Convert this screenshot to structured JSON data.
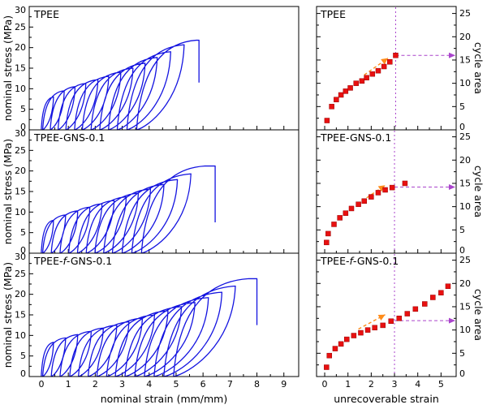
{
  "titles": {
    "left": [
      {
        "pre": "TPEE",
        "it": "",
        "post": ""
      },
      {
        "pre": "TPEE-GNS-0.1",
        "it": "",
        "post": ""
      },
      {
        "pre": "TPEE-",
        "it": "f",
        "post": "-GNS-0.1"
      }
    ],
    "right": [
      {
        "pre": "TPEE",
        "it": "",
        "post": ""
      },
      {
        "pre": "TPEE-GNS-0.1",
        "it": "",
        "post": ""
      },
      {
        "pre": "TPEE-",
        "it": "f",
        "post": "-GNS-0.1"
      }
    ]
  },
  "axes": {
    "left": {
      "ylabel": "nominal stress (MPa)",
      "xlabel": "nominal strain (mm/mm)",
      "y_ticks": [
        0,
        5,
        10,
        15,
        20,
        25,
        30
      ],
      "x_ticks": [
        0,
        1,
        2,
        3,
        4,
        5,
        6,
        7,
        8,
        9
      ],
      "ylim": [
        0,
        30
      ],
      "xlim": [
        0,
        9
      ]
    },
    "right": {
      "ylabel": "cycle area",
      "xlabel": "unrecoverable strain",
      "y_ticks": [
        0,
        5,
        10,
        15,
        20,
        25
      ],
      "x_ticks": [
        0,
        1,
        2,
        3,
        4,
        5
      ],
      "ylim": [
        0,
        25
      ],
      "xlim": [
        0,
        5
      ]
    }
  },
  "colors": {
    "curve": "#1414e0",
    "marker": "#e81010",
    "orange_arrow": "#ff8c1a",
    "purple_guide": "#aa44cc",
    "frame": "#000000"
  },
  "chart_data": [
    {
      "position": {
        "col": "left",
        "row": 0
      },
      "type": "line",
      "title": "TPEE",
      "xlabel": "nominal strain (mm/mm)",
      "ylabel": "nominal stress (MPa)",
      "xlim": [
        0,
        9
      ],
      "ylim": [
        0,
        30
      ],
      "series_desc": "cyclic loading-unloading hysteresis loops (nominal stress vs nominal strain)",
      "cycles_peak_strain_stress": [
        [
          0.45,
          8
        ],
        [
          0.85,
          9.5
        ],
        [
          1.25,
          10.5
        ],
        [
          1.65,
          11.3
        ],
        [
          2.1,
          12.2
        ],
        [
          2.5,
          13
        ],
        [
          2.95,
          14
        ],
        [
          3.4,
          15
        ],
        [
          3.85,
          16.2
        ],
        [
          4.3,
          17.6
        ],
        [
          4.8,
          19
        ],
        [
          5.3,
          20.7
        ],
        [
          5.75,
          21.8
        ]
      ],
      "fracture": {
        "strain": 5.85,
        "stress_drop_to": 11.5
      }
    },
    {
      "position": {
        "col": "left",
        "row": 1
      },
      "type": "line",
      "title": "TPEE-GNS-0.1",
      "xlabel": "nominal strain (mm/mm)",
      "ylabel": "nominal stress (MPa)",
      "xlim": [
        0,
        9
      ],
      "ylim": [
        0,
        30
      ],
      "series_desc": "cyclic loading-unloading hysteresis loops (nominal stress vs nominal strain)",
      "cycles_peak_strain_stress": [
        [
          0.45,
          8
        ],
        [
          0.9,
          9.3
        ],
        [
          1.35,
          10.3
        ],
        [
          1.8,
          11.2
        ],
        [
          2.25,
          12
        ],
        [
          2.7,
          12.8
        ],
        [
          3.15,
          13.7
        ],
        [
          3.6,
          14.6
        ],
        [
          4.05,
          15.6
        ],
        [
          4.55,
          16.7
        ],
        [
          5.05,
          17.9
        ],
        [
          5.55,
          19.3
        ],
        [
          6.05,
          21.2
        ]
      ],
      "fracture": {
        "strain": 6.45,
        "stress_drop_to": 7.5
      }
    },
    {
      "position": {
        "col": "left",
        "row": 2
      },
      "type": "line",
      "title": "TPEE-f-GNS-0.1",
      "xlabel": "nominal strain (mm/mm)",
      "ylabel": "nominal stress (MPa)",
      "xlim": [
        0,
        9
      ],
      "ylim": [
        0,
        30
      ],
      "series_desc": "cyclic loading-unloading hysteresis loops (nominal stress vs nominal strain)",
      "cycles_peak_strain_stress": [
        [
          0.45,
          8.3
        ],
        [
          0.9,
          9.4
        ],
        [
          1.35,
          10.2
        ],
        [
          1.85,
          11
        ],
        [
          2.3,
          11.8
        ],
        [
          2.8,
          12.5
        ],
        [
          3.25,
          13.3
        ],
        [
          3.75,
          14.2
        ],
        [
          4.2,
          15
        ],
        [
          4.7,
          16
        ],
        [
          5.2,
          17
        ],
        [
          5.7,
          18
        ],
        [
          6.2,
          19.2
        ],
        [
          6.7,
          20.5
        ],
        [
          7.2,
          22
        ],
        [
          7.7,
          23.8
        ]
      ],
      "fracture": {
        "strain": 8.0,
        "stress_drop_to": 12.5
      }
    },
    {
      "position": {
        "col": "right",
        "row": 0
      },
      "type": "scatter",
      "title": "TPEE",
      "xlabel": "unrecoverable strain",
      "ylabel": "cycle area",
      "xlim": [
        0,
        5
      ],
      "ylim": [
        0,
        25
      ],
      "x": [
        0.1,
        0.3,
        0.5,
        0.7,
        0.9,
        1.1,
        1.35,
        1.6,
        1.8,
        2.05,
        2.3,
        2.55,
        2.8,
        3.05
      ],
      "y": [
        2,
        5,
        6.5,
        7.5,
        8.3,
        9,
        10,
        10.5,
        11.2,
        12,
        12.7,
        13.6,
        14.6,
        16
      ],
      "guides": {
        "vline_x": 3.05,
        "harrow_y": 16,
        "harrow_x_start": 3.05
      },
      "orange_arrow": {
        "from": [
          1.7,
          11.8
        ],
        "to": [
          2.72,
          15.4
        ]
      }
    },
    {
      "position": {
        "col": "right",
        "row": 1
      },
      "type": "scatter",
      "title": "TPEE-GNS-0.1",
      "xlabel": "unrecoverable strain",
      "ylabel": "cycle area",
      "xlim": [
        0,
        5
      ],
      "ylim": [
        0,
        25
      ],
      "x": [
        0.08,
        0.15,
        0.4,
        0.65,
        0.9,
        1.15,
        1.45,
        1.7,
        2.0,
        2.3,
        2.6,
        2.9,
        3.45
      ],
      "y": [
        2.3,
        4.2,
        6.2,
        7.6,
        8.6,
        9.6,
        10.5,
        11.2,
        12.1,
        13,
        13.6,
        14.1,
        15
      ],
      "guides": {
        "vline_x": 3.0,
        "harrow_y": 14.2,
        "harrow_x_start": 3.0
      },
      "orange_arrow": {
        "from": [
          1.6,
          11.2
        ],
        "to": [
          2.6,
          14.6
        ]
      }
    },
    {
      "position": {
        "col": "right",
        "row": 2
      },
      "type": "scatter",
      "title": "TPEE-f-GNS-0.1",
      "xlabel": "unrecoverable strain",
      "ylabel": "cycle area",
      "xlim": [
        0,
        5
      ],
      "ylim": [
        0,
        25
      ],
      "x": [
        0.08,
        0.2,
        0.45,
        0.7,
        0.95,
        1.25,
        1.55,
        1.85,
        2.15,
        2.5,
        2.85,
        3.2,
        3.55,
        3.9,
        4.3,
        4.65,
        5.0,
        5.3
      ],
      "y": [
        2,
        4.5,
        6,
        7,
        8,
        8.8,
        9.4,
        10,
        10.5,
        11,
        11.9,
        12.5,
        13.5,
        14.5,
        15.6,
        17,
        18,
        19.4
      ],
      "guides": {
        "vline_x": 3.0,
        "harrow_y": 12,
        "harrow_x_start": 3.0
      },
      "orange_arrow": {
        "from": [
          1.45,
          10.2
        ],
        "to": [
          2.6,
          13.3
        ]
      }
    }
  ]
}
